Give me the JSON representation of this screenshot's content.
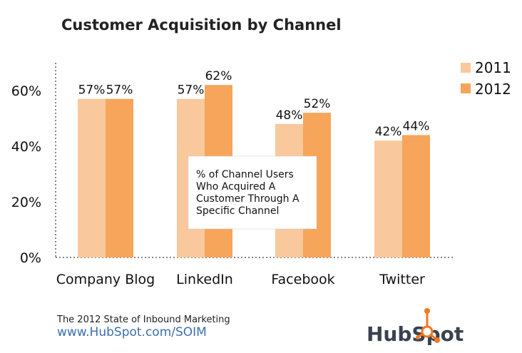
{
  "chart_data": {
    "type": "bar",
    "title": "Customer Acquisition by Channel",
    "categories": [
      "Company Blog",
      "LinkedIn",
      "Facebook",
      "Twitter"
    ],
    "series": [
      {
        "name": "2011",
        "values": [
          57,
          57,
          48,
          42
        ],
        "labels": [
          "57%",
          "57%",
          "48%",
          "42%"
        ],
        "color": "#f9c89c"
      },
      {
        "name": "2012",
        "values": [
          57,
          62,
          52,
          44
        ],
        "labels": [
          "57%",
          "62%",
          "52%",
          "44%"
        ],
        "color": "#f6a55a"
      }
    ],
    "ylim": [
      0,
      70
    ],
    "yticks": [
      0,
      20,
      40,
      60
    ],
    "ytick_labels": [
      "0%",
      "20%",
      "40%",
      "60%"
    ],
    "xlabel": "",
    "ylabel": "",
    "legend_position": "top-right",
    "grid": false,
    "annotation": "% of Channel Users Who Acquired A Customer Through A Specific Channel",
    "annotation_lines": [
      "% of Channel Users",
      "Who Acquired A",
      "Customer Through A",
      "Specific Channel"
    ]
  },
  "footer": {
    "source_line": "The 2012 State of Inbound Marketing",
    "url": "www.HubSpot.com/SOIM",
    "logo_text": "HubSpot",
    "logo_color": "#f57722"
  }
}
